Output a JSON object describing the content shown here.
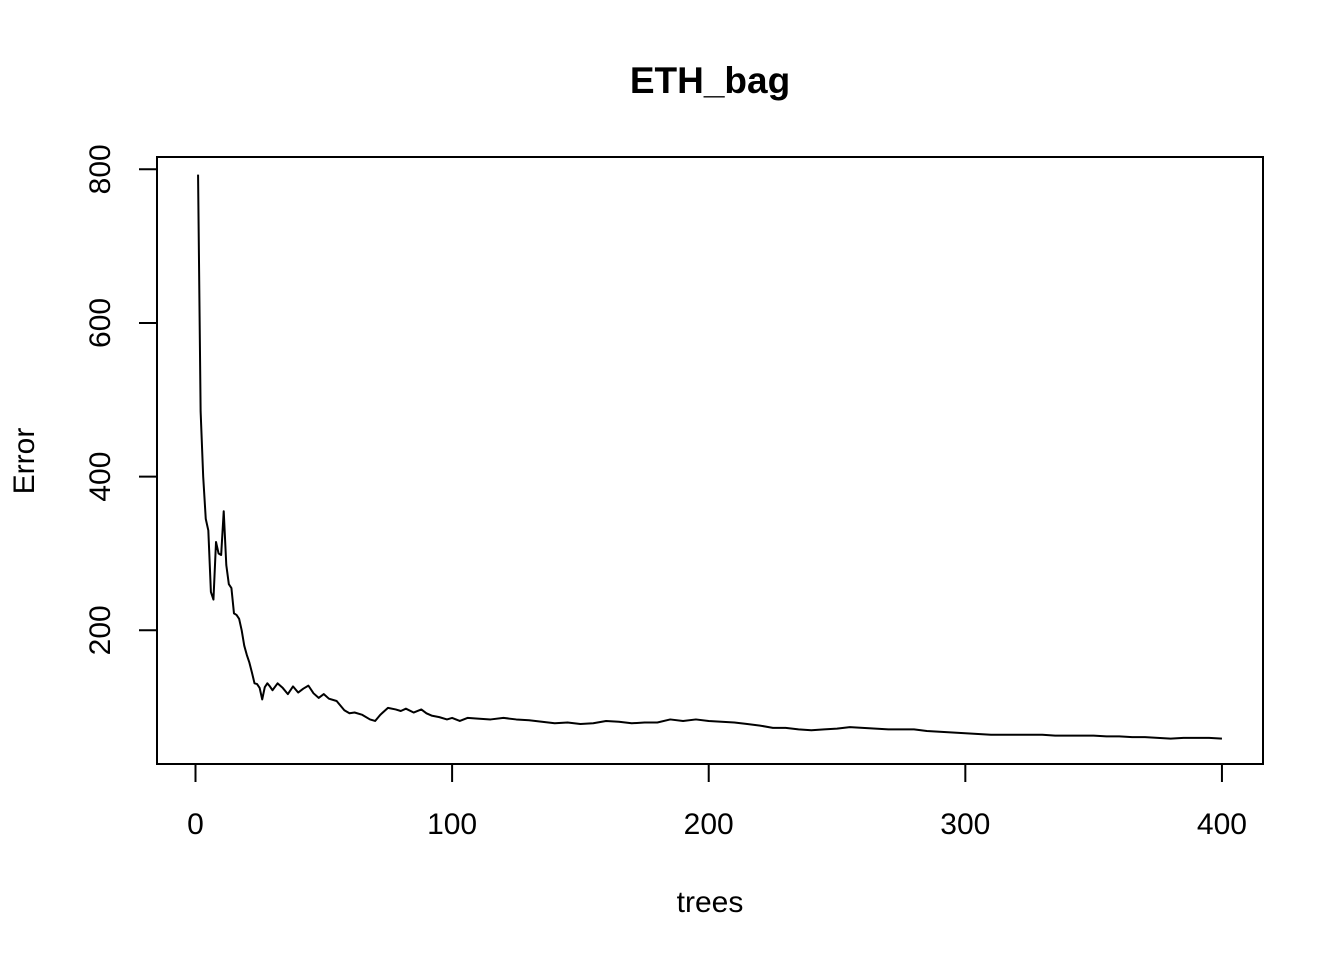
{
  "chart_data": {
    "type": "line",
    "title": "ETH_bag",
    "xlabel": "trees",
    "ylabel": "Error",
    "xlim": [
      -15,
      416
    ],
    "ylim": [
      26,
      816
    ],
    "x_ticks": [
      0,
      100,
      200,
      300,
      400
    ],
    "y_ticks": [
      200,
      400,
      600,
      800
    ],
    "grid": false,
    "line_color": "#000000",
    "series": [
      {
        "x": [
          1,
          2,
          3,
          4,
          5,
          6,
          7,
          8,
          9,
          10,
          11,
          12,
          13,
          14,
          15,
          16,
          17,
          18,
          19,
          20,
          21,
          22,
          23,
          24,
          25,
          26,
          27,
          28,
          29,
          30,
          32,
          34,
          36,
          38,
          40,
          42,
          44,
          46,
          48,
          50,
          52,
          55,
          58,
          60,
          62,
          65,
          68,
          70,
          72,
          75,
          78,
          80,
          82,
          85,
          88,
          90,
          92,
          95,
          98,
          100,
          103,
          106,
          110,
          115,
          120,
          125,
          130,
          135,
          140,
          145,
          150,
          155,
          160,
          165,
          170,
          175,
          180,
          185,
          190,
          195,
          200,
          205,
          210,
          215,
          220,
          225,
          230,
          235,
          240,
          245,
          250,
          255,
          260,
          265,
          270,
          275,
          280,
          285,
          290,
          295,
          300,
          305,
          310,
          315,
          320,
          325,
          330,
          335,
          340,
          345,
          350,
          355,
          360,
          365,
          370,
          375,
          380,
          385,
          390,
          395,
          400
        ],
        "values": [
          793,
          485,
          400,
          345,
          330,
          250,
          240,
          315,
          300,
          298,
          355,
          285,
          260,
          255,
          222,
          220,
          215,
          200,
          180,
          168,
          158,
          145,
          131,
          130,
          125,
          110,
          126,
          131,
          127,
          122,
          131,
          125,
          117,
          127,
          119,
          124,
          128,
          118,
          112,
          117,
          111,
          108,
          96,
          92,
          93,
          90,
          84,
          82,
          90,
          99,
          97,
          95,
          98,
          93,
          97,
          92,
          89,
          87,
          84,
          86,
          82,
          86,
          85,
          84,
          86,
          84,
          83,
          81,
          79,
          80,
          78,
          79,
          82,
          81,
          79,
          80,
          80,
          84,
          82,
          84,
          82,
          81,
          80,
          78,
          76,
          73,
          73,
          71,
          70,
          71,
          72,
          74,
          73,
          72,
          71,
          71,
          71,
          69,
          68,
          67,
          66,
          65,
          64,
          64,
          64,
          64,
          64,
          63,
          63,
          63,
          63,
          62,
          62,
          61,
          61,
          60,
          59,
          60,
          60,
          60,
          59
        ]
      }
    ]
  }
}
